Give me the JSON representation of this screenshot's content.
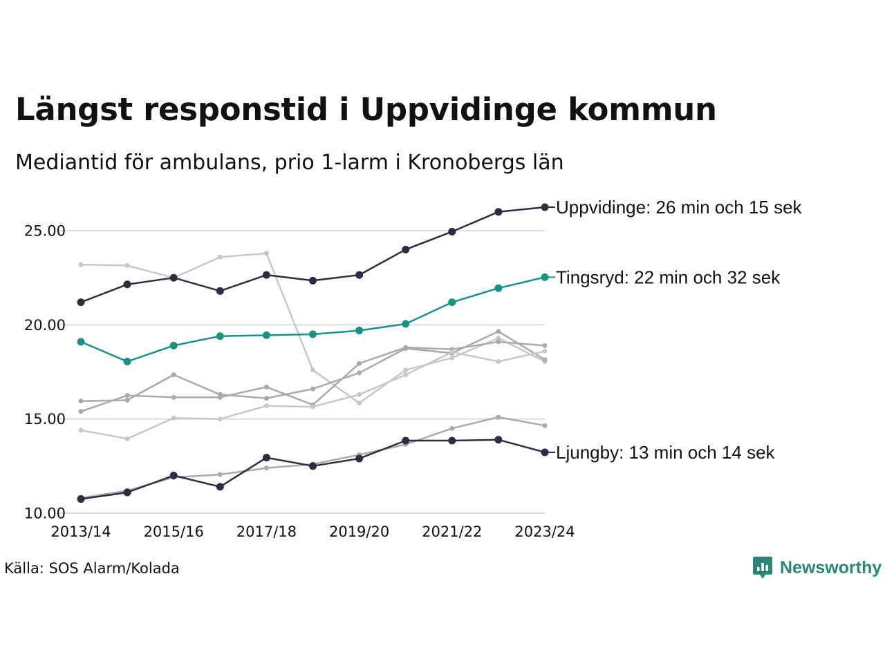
{
  "title": "Längst responstid i Uppvidinge kommun",
  "subtitle": "Mediantid för ambulans, prio 1-larm i Kronobergs län",
  "source": "Källa: SOS Alarm/Kolada",
  "brand": {
    "name": "Newsworthy",
    "icon": "newsworthy-logo-icon",
    "color": "#2c8577"
  },
  "chart_data": {
    "type": "line",
    "x": [
      "2013/14",
      "2014/15",
      "2015/16",
      "2016/17",
      "2017/18",
      "2018/19",
      "2019/20",
      "2020/21",
      "2021/22",
      "2022/23",
      "2023/24"
    ],
    "x_tick_labels": [
      "2013/14",
      "2015/16",
      "2017/18",
      "2019/20",
      "2021/22",
      "2023/24"
    ],
    "ylim": [
      10,
      26.8
    ],
    "y_ticks": [
      10,
      15,
      20,
      25
    ],
    "y_tick_labels": [
      "10.00",
      "15.00",
      "20.00",
      "25.00"
    ],
    "grid": "horizontal",
    "colors": {
      "highlight_dark": "#2d2d3f",
      "highlight_teal": "#1a9183",
      "context_mid": "#aaaaaa",
      "context_light": "#c8c8c8",
      "grid": "#dddddd"
    },
    "series": [
      {
        "values": [
          23.2,
          23.15,
          22.5,
          23.6,
          23.8,
          17.6,
          15.85,
          17.6,
          18.25,
          19.3,
          18.05
        ],
        "style": "light"
      },
      {
        "values": [
          15.4,
          16.25,
          16.15,
          16.15,
          16.7,
          15.75,
          17.95,
          18.8,
          18.7,
          19.1,
          18.9
        ],
        "style": "mid"
      },
      {
        "values": [
          15.95,
          16.0,
          17.35,
          16.3,
          16.1,
          16.6,
          17.45,
          18.75,
          18.5,
          19.65,
          18.15
        ],
        "style": "mid"
      },
      {
        "values": [
          14.4,
          13.95,
          15.05,
          15.0,
          15.7,
          15.65,
          16.3,
          17.35,
          18.55,
          18.05,
          18.6
        ],
        "style": "light"
      },
      {
        "values": [
          10.8,
          11.2,
          11.9,
          12.05,
          12.4,
          12.6,
          13.1,
          13.65,
          14.5,
          15.1,
          14.65
        ],
        "style": "mid"
      },
      {
        "name": "Uppvidinge",
        "values": [
          21.2,
          22.15,
          22.5,
          21.8,
          22.65,
          22.35,
          22.65,
          24.0,
          24.95,
          26.0,
          26.25
        ],
        "style": "dark",
        "end_label": "Uppvidinge: 26 min och 15 sek"
      },
      {
        "name": "Tingsryd",
        "values": [
          19.1,
          18.05,
          18.9,
          19.4,
          19.45,
          19.5,
          19.7,
          20.05,
          21.2,
          21.95,
          22.53
        ],
        "style": "teal",
        "end_label": "Tingsryd: 22 min och 32 sek"
      },
      {
        "name": "Ljungby",
        "values": [
          10.75,
          11.1,
          12.0,
          11.4,
          12.95,
          12.5,
          12.9,
          13.85,
          13.85,
          13.9,
          13.23
        ],
        "style": "dark",
        "end_label": "Ljungby: 13 min och 14 sek"
      }
    ]
  }
}
